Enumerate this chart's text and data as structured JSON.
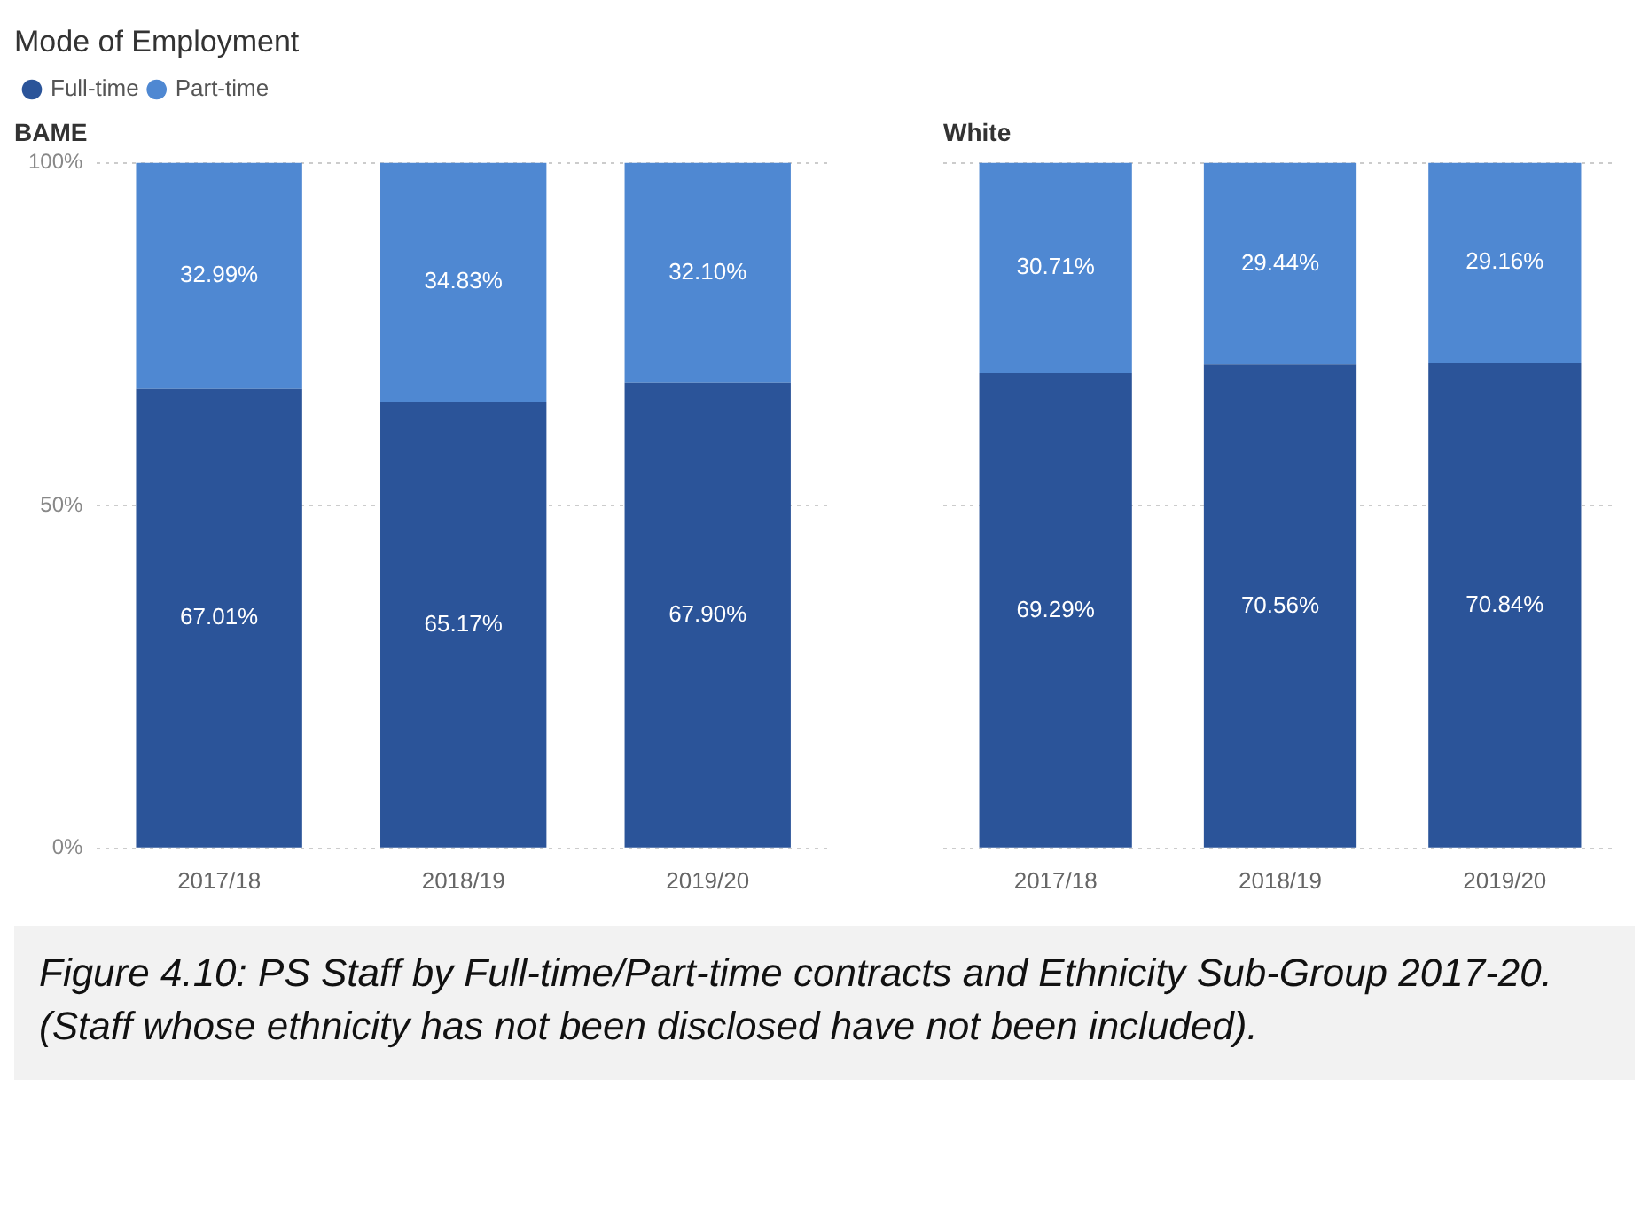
{
  "chart_data": [
    {
      "type": "bar",
      "title": "Mode of Employment",
      "subtitle": "BAME",
      "categories": [
        "2017/18",
        "2018/19",
        "2019/20"
      ],
      "stacked": true,
      "series": [
        {
          "name": "Full-time",
          "color": "#2b5499",
          "values": [
            67.01,
            65.17,
            67.9
          ],
          "value_labels": [
            "67.01%",
            "65.17%",
            "67.90%"
          ]
        },
        {
          "name": "Part-time",
          "color": "#4f88d2",
          "values": [
            32.99,
            34.83,
            32.1
          ],
          "value_labels": [
            "32.99%",
            "34.83%",
            "32.10%"
          ]
        }
      ],
      "ylim": [
        0,
        100
      ],
      "yticks": [
        {
          "value": 0,
          "label": "0%"
        },
        {
          "value": 50,
          "label": "50%"
        },
        {
          "value": 100,
          "label": "100%"
        }
      ],
      "grid": "y",
      "legend": "top left",
      "annotations": [
        "Figure 4.10: PS Staff by Full-time/Part-time contracts and Ethnicity Sub-Group 2017-20. (Staff whose ethnicity has not been disclosed have not been included)."
      ]
    },
    {
      "type": "bar",
      "subtitle": "White",
      "categories": [
        "2017/18",
        "2018/19",
        "2019/20"
      ],
      "stacked": true,
      "series": [
        {
          "color": "#2b5499",
          "values": [
            69.29,
            70.56,
            70.84
          ],
          "value_labels": [
            "69.29%",
            "70.56%",
            "70.84%"
          ]
        },
        {
          "color": "#4f88d2",
          "values": [
            30.71,
            29.44,
            29.16
          ],
          "value_labels": [
            "30.71%",
            "29.44%",
            "29.16%"
          ]
        }
      ],
      "ylim": [
        0,
        100
      ],
      "yticks": [
        0,
        50,
        100
      ],
      "grid": "y",
      "tick_labels": "x",
      "legend": false
    }
  ]
}
